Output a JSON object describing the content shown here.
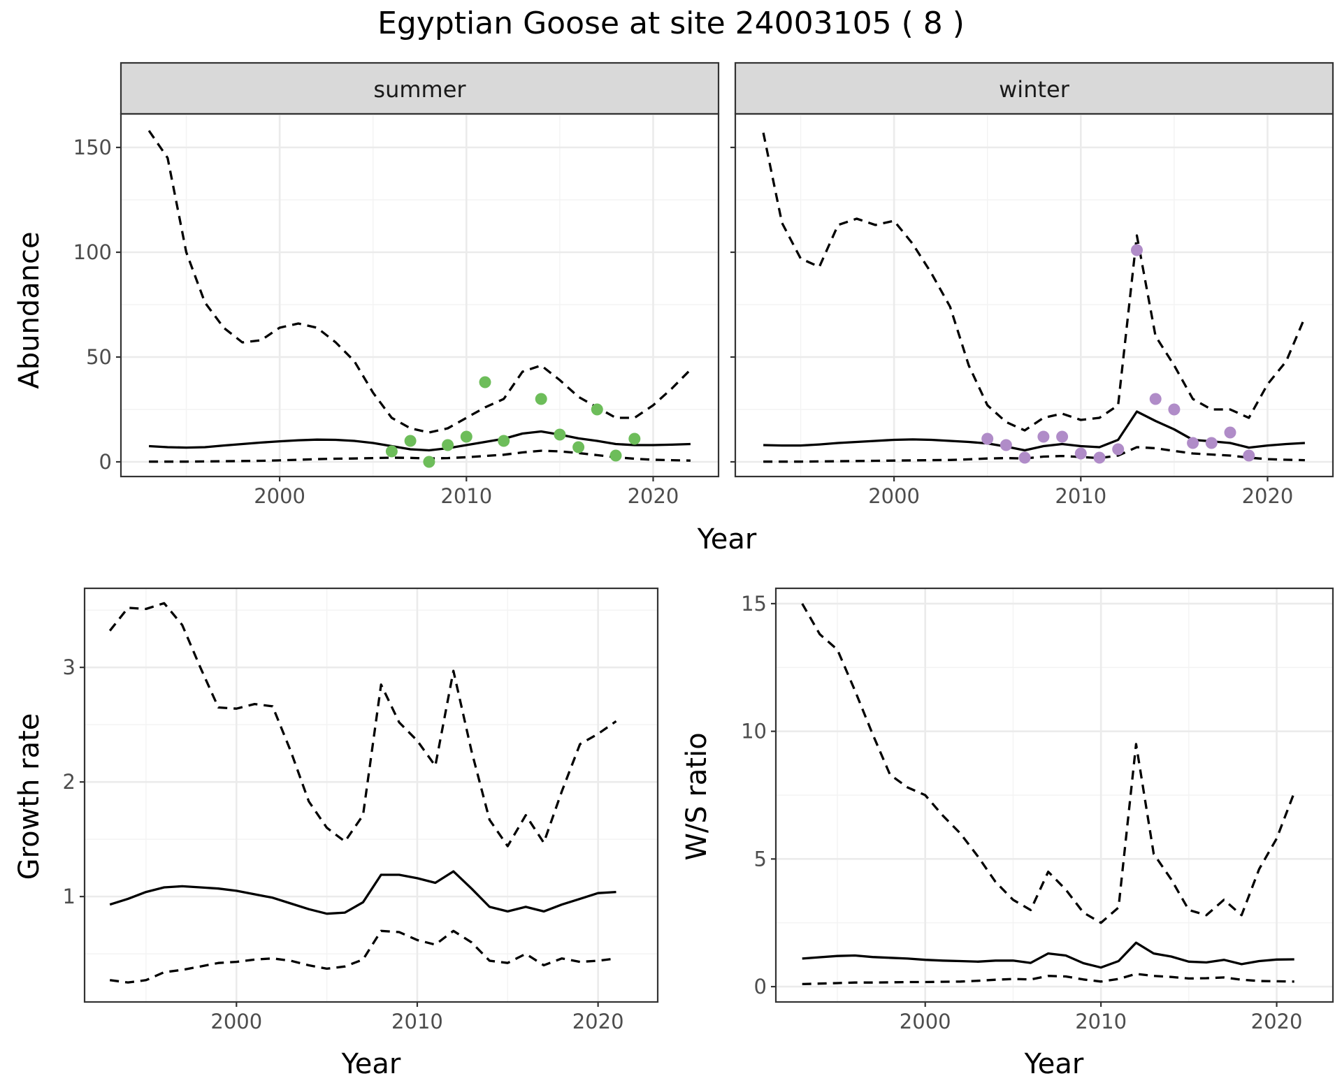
{
  "title": "Egyptian Goose at site 24003105 ( 8 )",
  "colors": {
    "summer_points": "#6dbd5a",
    "winter_points": "#b08cc8",
    "line": "#000000"
  },
  "chart_data": [
    {
      "id": "abundance_summer",
      "type": "line",
      "facet_label": "summer",
      "xlabel": "",
      "ylabel": "Abundance",
      "xlim": [
        1991.5,
        2023.5
      ],
      "ylim": [
        -7,
        166
      ],
      "x_ticks": [
        2000,
        2010,
        2020
      ],
      "y_ticks": [
        0,
        50,
        100,
        150
      ],
      "grid": true,
      "series": [
        {
          "style": "solid",
          "x": [
            1993,
            1994,
            1995,
            1996,
            1997,
            1998,
            1999,
            2000,
            2001,
            2002,
            2003,
            2004,
            2005,
            2006,
            2007,
            2008,
            2009,
            2010,
            2011,
            2012,
            2013,
            2014,
            2015,
            2016,
            2017,
            2018,
            2019,
            2020,
            2021,
            2022
          ],
          "values": [
            7.5,
            7,
            6.8,
            7,
            7.8,
            8.5,
            9.2,
            9.8,
            10.3,
            10.6,
            10.5,
            10,
            9,
            7.5,
            6,
            5.5,
            6.5,
            8,
            9.5,
            11,
            13.5,
            14.5,
            13,
            11.2,
            10,
            8.5,
            8,
            8,
            8.2,
            8.5
          ]
        },
        {
          "style": "dashed",
          "x": [
            1993,
            1994,
            1995,
            1996,
            1997,
            1998,
            1999,
            2000,
            2001,
            2002,
            2003,
            2004,
            2005,
            2006,
            2007,
            2008,
            2009,
            2010,
            2011,
            2012,
            2013,
            2014,
            2015,
            2016,
            2017,
            2018,
            2019,
            2020,
            2021,
            2022
          ],
          "values": [
            158,
            145,
            100,
            76,
            64,
            57,
            58,
            64,
            66,
            64,
            57,
            48,
            33,
            21,
            16,
            14,
            16,
            21,
            26,
            30,
            43,
            46,
            39,
            31,
            26,
            21,
            21,
            27,
            35,
            44
          ]
        },
        {
          "style": "dashed",
          "x": [
            1993,
            1994,
            1995,
            1996,
            1997,
            1998,
            1999,
            2000,
            2001,
            2002,
            2003,
            2004,
            2005,
            2006,
            2007,
            2008,
            2009,
            2010,
            2011,
            2012,
            2013,
            2014,
            2015,
            2016,
            2017,
            2018,
            2019,
            2020,
            2021,
            2022
          ],
          "values": [
            0.1,
            0.1,
            0.1,
            0.2,
            0.3,
            0.4,
            0.5,
            0.7,
            1,
            1.3,
            1.5,
            1.6,
            1.8,
            2,
            1.9,
            1.6,
            1.8,
            2.2,
            2.8,
            3.4,
            4.5,
            5.3,
            5,
            4.2,
            3.2,
            2.2,
            1.5,
            1,
            0.8,
            0.6
          ]
        }
      ],
      "points": {
        "x": [
          2006,
          2007,
          2008,
          2009,
          2010,
          2011,
          2012,
          2014,
          2015,
          2016,
          2017,
          2018,
          2019
        ],
        "y": [
          5,
          10,
          0,
          8,
          12,
          38,
          10,
          30,
          13,
          7,
          25,
          3,
          11
        ]
      }
    },
    {
      "id": "abundance_winter",
      "type": "line",
      "facet_label": "winter",
      "xlabel": "Year",
      "ylabel": "",
      "xlim": [
        1991.5,
        2023.5
      ],
      "ylim": [
        -7,
        166
      ],
      "x_ticks": [
        2000,
        2010,
        2020
      ],
      "y_ticks": [
        0,
        50,
        100,
        150
      ],
      "grid": true,
      "series": [
        {
          "style": "solid",
          "x": [
            1993,
            1994,
            1995,
            1996,
            1997,
            1998,
            1999,
            2000,
            2001,
            2002,
            2003,
            2004,
            2005,
            2006,
            2007,
            2008,
            2009,
            2010,
            2011,
            2012,
            2013,
            2014,
            2015,
            2016,
            2017,
            2018,
            2019,
            2020,
            2021,
            2022
          ],
          "values": [
            8,
            7.8,
            7.8,
            8.3,
            9,
            9.5,
            10,
            10.5,
            10.7,
            10.5,
            10,
            9.5,
            8.8,
            7.3,
            5.5,
            7.5,
            8.5,
            7.5,
            7,
            10.5,
            24,
            19.5,
            15.5,
            10.5,
            9.8,
            9,
            6.8,
            7.8,
            8.5,
            9
          ]
        },
        {
          "style": "dashed",
          "x": [
            1993,
            1994,
            1995,
            1996,
            1997,
            1998,
            1999,
            2000,
            2001,
            2002,
            2003,
            2004,
            2005,
            2006,
            2007,
            2008,
            2009,
            2010,
            2011,
            2012,
            2013,
            2014,
            2015,
            2016,
            2017,
            2018,
            2019,
            2020,
            2021,
            2022
          ],
          "values": [
            157,
            114,
            97,
            93,
            113,
            116,
            113,
            115,
            104,
            90,
            74,
            46,
            27,
            19,
            15,
            21,
            23,
            20,
            21,
            27,
            108,
            60,
            46,
            30,
            25,
            25,
            21,
            37,
            48,
            69
          ]
        },
        {
          "style": "dashed",
          "x": [
            1993,
            1994,
            1995,
            1996,
            1997,
            1998,
            1999,
            2000,
            2001,
            2002,
            2003,
            2004,
            2005,
            2006,
            2007,
            2008,
            2009,
            2010,
            2011,
            2012,
            2013,
            2014,
            2015,
            2016,
            2017,
            2018,
            2019,
            2020,
            2021,
            2022
          ],
          "values": [
            0.1,
            0.1,
            0.1,
            0.2,
            0.3,
            0.4,
            0.5,
            0.6,
            0.7,
            0.8,
            0.9,
            1.2,
            1.6,
            1.8,
            1.6,
            2.5,
            2.8,
            2.3,
            1.8,
            3,
            7,
            6.5,
            5.2,
            4,
            3.5,
            3,
            2,
            1.3,
            1,
            0.8
          ]
        }
      ],
      "points": {
        "x": [
          2005,
          2006,
          2007,
          2008,
          2009,
          2010,
          2011,
          2012,
          2013,
          2014,
          2015,
          2016,
          2017,
          2018,
          2019
        ],
        "y": [
          11,
          8,
          2,
          12,
          12,
          4,
          2,
          6,
          101,
          30,
          25,
          9,
          9,
          14,
          3
        ]
      }
    },
    {
      "id": "growth_rate",
      "type": "line",
      "xlabel": "Year",
      "ylabel": "Growth rate",
      "xlim": [
        1991.6,
        2023.3
      ],
      "ylim": [
        0.08,
        3.69
      ],
      "x_ticks": [
        2000,
        2010,
        2020
      ],
      "y_ticks": [
        1,
        2,
        3
      ],
      "grid": true,
      "series": [
        {
          "style": "solid",
          "x": [
            1993,
            1994,
            1995,
            1996,
            1997,
            1998,
            1999,
            2000,
            2001,
            2002,
            2003,
            2004,
            2005,
            2006,
            2007,
            2008,
            2009,
            2010,
            2011,
            2012,
            2013,
            2014,
            2015,
            2016,
            2017,
            2018,
            2019,
            2020,
            2021
          ],
          "values": [
            0.93,
            0.98,
            1.04,
            1.08,
            1.09,
            1.08,
            1.07,
            1.05,
            1.02,
            0.99,
            0.94,
            0.89,
            0.85,
            0.86,
            0.95,
            1.19,
            1.19,
            1.16,
            1.12,
            1.22,
            1.07,
            0.91,
            0.87,
            0.91,
            0.87,
            0.93,
            0.98,
            1.03,
            1.04
          ]
        },
        {
          "style": "dashed",
          "x": [
            1993,
            1994,
            1995,
            1996,
            1997,
            1998,
            1999,
            2000,
            2001,
            2002,
            2003,
            2004,
            2005,
            2006,
            2007,
            2008,
            2009,
            2010,
            2011,
            2012,
            2013,
            2014,
            2015,
            2016,
            2017,
            2018,
            2019,
            2020,
            2021
          ],
          "values": [
            3.32,
            3.52,
            3.51,
            3.56,
            3.37,
            3.0,
            2.65,
            2.64,
            2.68,
            2.66,
            2.27,
            1.83,
            1.6,
            1.48,
            1.71,
            2.85,
            2.52,
            2.36,
            2.14,
            2.97,
            2.27,
            1.67,
            1.44,
            1.71,
            1.47,
            1.92,
            2.33,
            2.42,
            2.53
          ]
        },
        {
          "style": "dashed",
          "x": [
            1993,
            1994,
            1995,
            1996,
            1997,
            1998,
            1999,
            2000,
            2001,
            2002,
            2003,
            2004,
            2005,
            2006,
            2007,
            2008,
            2009,
            2010,
            2011,
            2012,
            2013,
            2014,
            2015,
            2016,
            2017,
            2018,
            2019,
            2020,
            2021
          ],
          "values": [
            0.27,
            0.25,
            0.27,
            0.34,
            0.36,
            0.39,
            0.42,
            0.43,
            0.45,
            0.46,
            0.44,
            0.4,
            0.37,
            0.39,
            0.45,
            0.7,
            0.69,
            0.62,
            0.58,
            0.7,
            0.6,
            0.44,
            0.42,
            0.5,
            0.4,
            0.46,
            0.43,
            0.44,
            0.46
          ]
        }
      ]
    },
    {
      "id": "ws_ratio",
      "type": "line",
      "xlabel": "Year",
      "ylabel": "W/S ratio",
      "xlim": [
        1991.5,
        2023.2
      ],
      "ylim": [
        -0.6,
        15.6
      ],
      "x_ticks": [
        2000,
        2010,
        2020
      ],
      "y_ticks": [
        0,
        5,
        10,
        15
      ],
      "grid": true,
      "series": [
        {
          "style": "solid",
          "x": [
            1993,
            1994,
            1995,
            1996,
            1997,
            1998,
            1999,
            2000,
            2001,
            2002,
            2003,
            2004,
            2005,
            2006,
            2007,
            2008,
            2009,
            2010,
            2011,
            2012,
            2013,
            2014,
            2015,
            2016,
            2017,
            2018,
            2019,
            2020,
            2021
          ],
          "values": [
            1.1,
            1.15,
            1.2,
            1.22,
            1.16,
            1.13,
            1.1,
            1.05,
            1.02,
            1.0,
            0.98,
            1.02,
            1.02,
            0.93,
            1.3,
            1.22,
            0.92,
            0.75,
            1.0,
            1.72,
            1.3,
            1.18,
            0.98,
            0.95,
            1.05,
            0.88,
            1.0,
            1.06,
            1.07
          ]
        },
        {
          "style": "dashed",
          "x": [
            1993,
            1994,
            1995,
            1996,
            1997,
            1998,
            1999,
            2000,
            2001,
            2002,
            2003,
            2004,
            2005,
            2006,
            2007,
            2008,
            2009,
            2010,
            2011,
            2012,
            2013,
            2014,
            2015,
            2016,
            2017,
            2018,
            2019,
            2020,
            2021
          ],
          "values": [
            15.0,
            13.8,
            13.2,
            11.6,
            9.9,
            8.3,
            7.8,
            7.5,
            6.7,
            6.0,
            5.1,
            4.1,
            3.4,
            3.0,
            4.5,
            3.8,
            2.9,
            2.5,
            3.1,
            9.5,
            5.2,
            4.2,
            3.0,
            2.8,
            3.4,
            2.8,
            4.6,
            5.8,
            7.6
          ]
        },
        {
          "style": "dashed",
          "x": [
            1993,
            1994,
            1995,
            1996,
            1997,
            1998,
            1999,
            2000,
            2001,
            2002,
            2003,
            2004,
            2005,
            2006,
            2007,
            2008,
            2009,
            2010,
            2011,
            2012,
            2013,
            2014,
            2015,
            2016,
            2017,
            2018,
            2019,
            2020,
            2021
          ],
          "values": [
            0.1,
            0.12,
            0.14,
            0.16,
            0.16,
            0.17,
            0.18,
            0.18,
            0.19,
            0.2,
            0.23,
            0.27,
            0.3,
            0.28,
            0.42,
            0.4,
            0.28,
            0.2,
            0.3,
            0.5,
            0.42,
            0.38,
            0.32,
            0.33,
            0.36,
            0.27,
            0.22,
            0.21,
            0.2
          ]
        }
      ]
    }
  ]
}
